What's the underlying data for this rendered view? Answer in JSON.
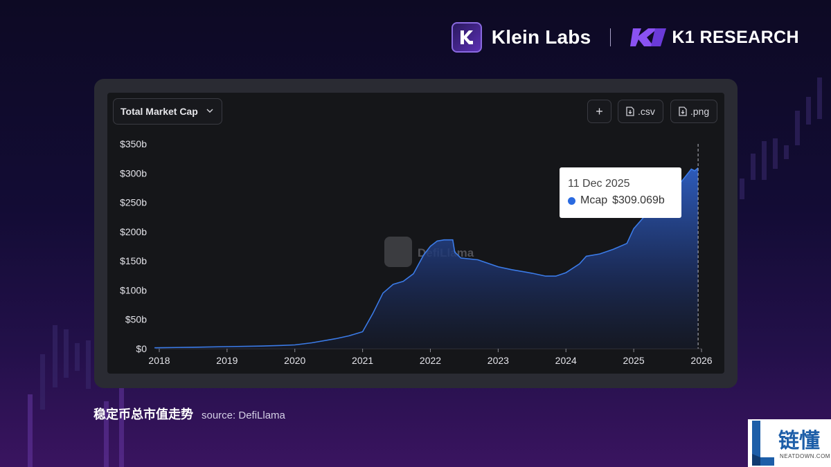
{
  "header": {
    "brand_primary": "Klein Labs",
    "brand_secondary": "K1 RESEARCH",
    "brand_primary_logo_icon": "klein-labs-logo-icon",
    "brand_secondary_logo_icon": "k1-logo-icon"
  },
  "toolbar": {
    "metric_selector": "Total Market Cap",
    "add_label": "+",
    "csv_label": ".csv",
    "png_label": ".png"
  },
  "watermark": "DefiLlama",
  "tooltip": {
    "date": "11 Dec 2025",
    "series": "Mcap",
    "value": "$309.069b"
  },
  "caption": {
    "title": "稳定币总市值走势",
    "source": "source: DefiLlama"
  },
  "corner_badge": {
    "text": "链懂",
    "sub": "NEATDOWN.COM"
  },
  "colors": {
    "accent": "#2a6ae0",
    "line": "#3b7be8",
    "panel_bg": "#151619",
    "page_bg_top": "#0d0a24",
    "page_bg_bottom": "#3a1460"
  },
  "chart_data": {
    "type": "area",
    "title": "",
    "xlabel": "",
    "ylabel": "",
    "xlim": [
      2018,
      2026
    ],
    "ylim": [
      0,
      350
    ],
    "y_ticks": [
      "$0",
      "$50b",
      "$100b",
      "$150b",
      "$200b",
      "$250b",
      "$300b",
      "$350b"
    ],
    "y_tick_values": [
      0,
      50,
      100,
      150,
      200,
      250,
      300,
      350
    ],
    "x_ticks": [
      "2018",
      "2019",
      "2020",
      "2021",
      "2022",
      "2023",
      "2024",
      "2025",
      "2026"
    ],
    "x_tick_values": [
      2018,
      2019,
      2020,
      2021,
      2022,
      2023,
      2024,
      2025,
      2026
    ],
    "grid": false,
    "series": [
      {
        "name": "Mcap",
        "x": [
          2017.93,
          2018.5,
          2019.0,
          2019.5,
          2019.8,
          2020.0,
          2020.25,
          2020.6,
          2020.8,
          2021.0,
          2021.15,
          2021.3,
          2021.45,
          2021.6,
          2021.75,
          2021.9,
          2022.0,
          2022.1,
          2022.2,
          2022.33,
          2022.36,
          2022.45,
          2022.7,
          2023.0,
          2023.2,
          2023.5,
          2023.7,
          2023.85,
          2024.0,
          2024.2,
          2024.3,
          2024.5,
          2024.7,
          2024.9,
          2025.0,
          2025.15,
          2025.3,
          2025.5,
          2025.7,
          2025.85,
          2025.9,
          2025.95
        ],
        "y": [
          1.5,
          2.5,
          3.5,
          4.5,
          5.5,
          6.5,
          10,
          17,
          22,
          29,
          60,
          95,
          110,
          115,
          128,
          160,
          175,
          184,
          186,
          186,
          165,
          155,
          152,
          140,
          135,
          129,
          124,
          124,
          130,
          145,
          158,
          162,
          170,
          180,
          205,
          225,
          240,
          260,
          285,
          307,
          304,
          309.069
        ]
      }
    ],
    "legend": "none",
    "cursor_date": "11 Dec 2025"
  }
}
